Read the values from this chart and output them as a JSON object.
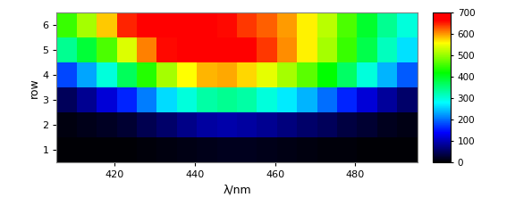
{
  "title": "",
  "xlabel": "λ/nm",
  "ylabel": "row",
  "wavelengths": [
    408,
    413,
    418,
    423,
    428,
    433,
    438,
    443,
    448,
    453,
    458,
    463,
    468,
    473,
    478,
    483,
    488,
    493
  ],
  "rows": [
    1,
    2,
    3,
    4,
    5,
    6
  ],
  "data": [
    [
      3,
      3,
      3,
      5,
      8,
      10,
      12,
      15,
      18,
      18,
      15,
      12,
      10,
      8,
      6,
      5,
      4,
      3
    ],
    [
      10,
      15,
      20,
      30,
      45,
      60,
      75,
      90,
      95,
      90,
      80,
      70,
      60,
      50,
      38,
      28,
      18,
      12
    ],
    [
      50,
      80,
      120,
      160,
      210,
      260,
      300,
      330,
      340,
      330,
      300,
      270,
      240,
      200,
      160,
      120,
      85,
      60
    ],
    [
      180,
      230,
      300,
      370,
      440,
      510,
      560,
      590,
      595,
      575,
      545,
      510,
      470,
      420,
      365,
      300,
      240,
      190
    ],
    [
      340,
      390,
      460,
      540,
      610,
      660,
      690,
      700,
      695,
      670,
      640,
      605,
      565,
      510,
      450,
      380,
      315,
      265
    ],
    [
      450,
      510,
      580,
      650,
      700,
      710,
      700,
      680,
      660,
      640,
      625,
      600,
      565,
      520,
      460,
      395,
      340,
      300
    ]
  ],
  "vmin": 0,
  "vmax": 700,
  "colorbar_ticks": [
    0,
    100,
    200,
    300,
    400,
    500,
    600,
    700
  ],
  "xticks": [
    420,
    440,
    460,
    480
  ],
  "yticks": [
    1,
    2,
    3,
    4,
    5,
    6
  ],
  "background_color": "#ffffff",
  "panel_bg": "#c8c8c8"
}
